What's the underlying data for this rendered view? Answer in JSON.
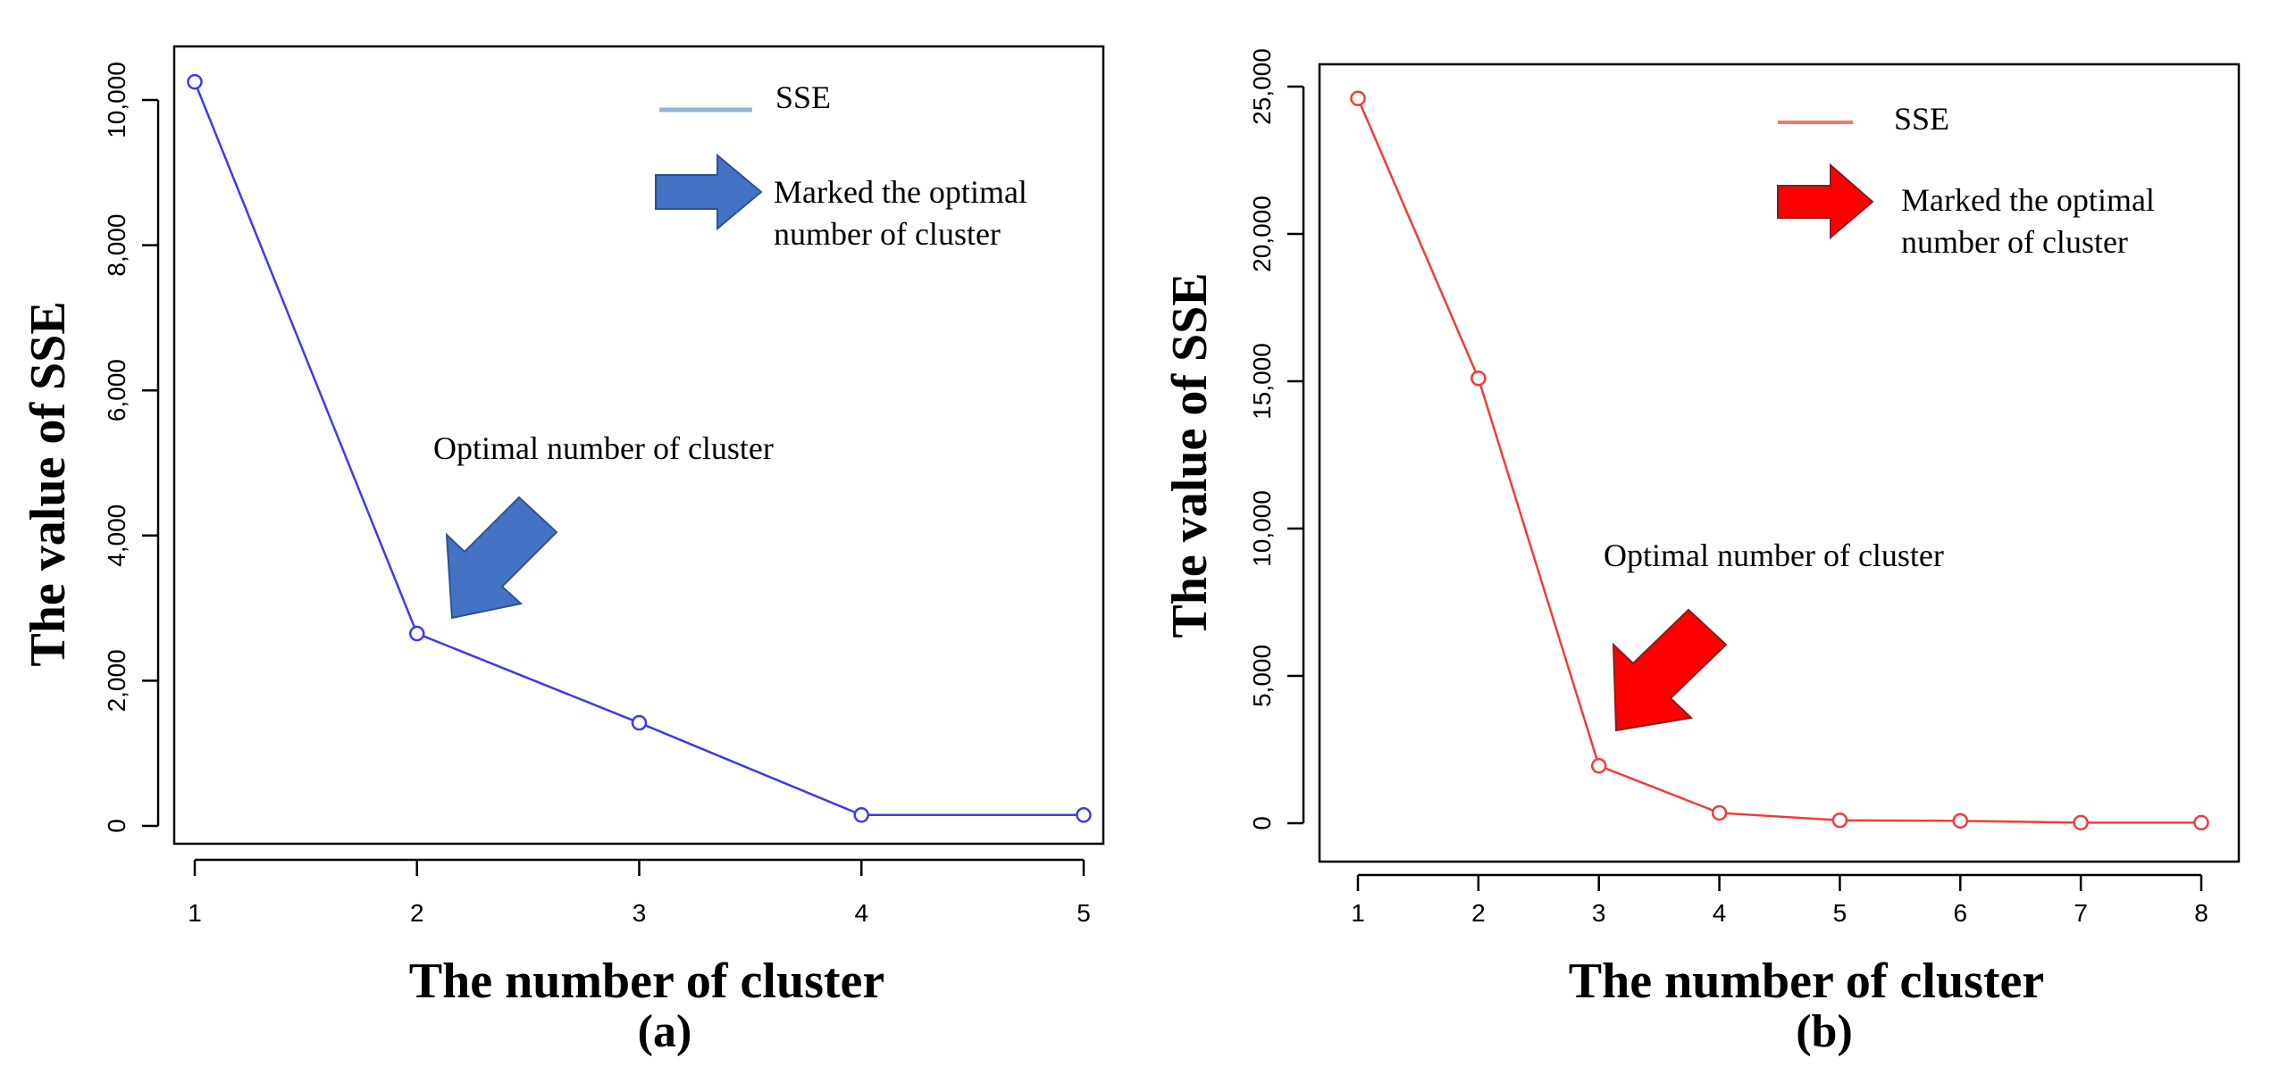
{
  "chart_data": [
    {
      "type": "line",
      "panel_label": "(a)",
      "xlabel": "The number of cluster",
      "ylabel": "The value of SSE",
      "x": [
        1,
        2,
        3,
        4,
        5
      ],
      "series": [
        {
          "name": "SSE",
          "values": [
            10250,
            2650,
            1420,
            150,
            150
          ],
          "color": "#3b3bf0"
        }
      ],
      "xlim": [
        1,
        5
      ],
      "ylim": [
        0,
        10000
      ],
      "yticks": [
        0,
        2000,
        4000,
        6000,
        8000,
        10000
      ],
      "ytick_labels": [
        "0",
        "2,000",
        "4,000",
        "6,000",
        "8,000",
        "10,000"
      ],
      "xtick_labels": [
        "1",
        "2",
        "3",
        "4",
        "5"
      ],
      "legend": {
        "position": "top-right",
        "label": "SSE"
      },
      "marker_note": {
        "line1": "Marked the optimal",
        "line2": "number of cluster"
      },
      "annotation": {
        "text": "Optimal number of cluster",
        "target_x": 2,
        "arrow_color": "#4472c4"
      },
      "grid": false
    },
    {
      "type": "line",
      "panel_label": "(b)",
      "xlabel": "The number of cluster",
      "ylabel": "The value of SSE",
      "x": [
        1,
        2,
        3,
        4,
        5,
        6,
        7,
        8
      ],
      "series": [
        {
          "name": "SSE",
          "values": [
            24600,
            15100,
            1950,
            350,
            100,
            80,
            20,
            20
          ],
          "color": "#f03c3c"
        }
      ],
      "xlim": [
        1,
        8
      ],
      "ylim": [
        0,
        25000
      ],
      "yticks": [
        0,
        5000,
        10000,
        15000,
        20000,
        25000
      ],
      "ytick_labels": [
        "0",
        "5,000",
        "10,000",
        "15,000",
        "20,000",
        "25,000"
      ],
      "xtick_labels": [
        "1",
        "2",
        "3",
        "4",
        "5",
        "6",
        "7",
        "8"
      ],
      "legend": {
        "position": "top-right",
        "label": "SSE"
      },
      "marker_note": {
        "line1": "Marked the optimal",
        "line2": "number of cluster"
      },
      "annotation": {
        "text": "Optimal number of cluster",
        "target_x": 3,
        "arrow_color": "#ff0000"
      },
      "grid": false
    }
  ]
}
